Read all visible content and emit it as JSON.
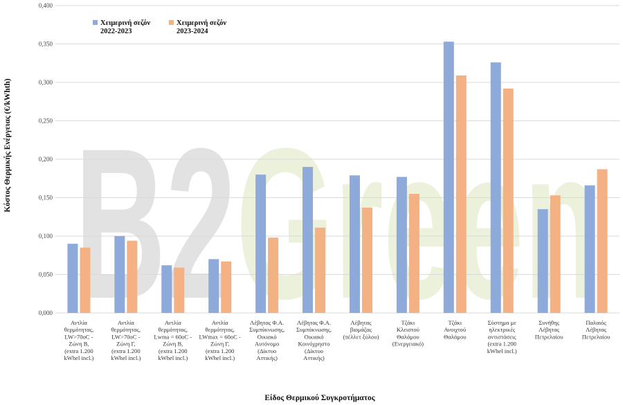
{
  "chart_data": {
    "type": "bar",
    "title": "",
    "xlabel": "Είδος Θερμικού Συγκροτήματος",
    "ylabel": "Κόστος Θερμικής Ενέργειας (€/kWhth)",
    "ylim": [
      0,
      0.4
    ],
    "yticks": [
      "0,000",
      "0,050",
      "0,100",
      "0,150",
      "0,200",
      "0,250",
      "0,300",
      "0,350",
      "0,400"
    ],
    "grid": true,
    "legend_position": "top-left",
    "categories": [
      [
        "Αντλία",
        "θερμότητας,",
        "LW>70oC -",
        "Ζώνη Β,",
        "(extra 1.200",
        "kWhel incl.)"
      ],
      [
        "Αντλία",
        "θερμότητας,",
        "LW>70oC -",
        "Ζώνη Γ,",
        "(extra 1.200",
        "kWhel incl.)"
      ],
      [
        "Αντλία",
        "θερμότητας,",
        "Lwma = 60oC -",
        "Ζώνη Β,",
        "(extra 1.200",
        "kWhel incl.)"
      ],
      [
        "Αντλία",
        "θερμότητας,",
        "LWmax = 60oC -",
        "Ζώνη Γ,",
        "(extra 1.200",
        "kWhel incl.)"
      ],
      [
        "Λέβητας Φ.Α.",
        "Συμπύκνωσης,",
        "Οικιακό",
        "Αυτόνομο",
        "(Δίκτυο",
        "Αττικής)"
      ],
      [
        "Λέβητας Φ.Α.",
        "Συμπύκνωσης,",
        "Οικιακό",
        "Κοινόχρηστο",
        "(Δίκτυο",
        "Αττικής)"
      ],
      [
        "Λέβητας",
        "βιομάζας",
        "(πέλλετ ξύλου)"
      ],
      [
        "Τζάκι",
        "Κλειστού",
        "Θαλάμου",
        "(Ενεργειακό)"
      ],
      [
        "Τζάκι",
        "Ανοιχτού",
        "Θαλάμου"
      ],
      [
        "Σύστημα με",
        "ηλεκτρικές",
        "αντιστάσεις",
        "(extra 1.200",
        "kWhel incl.)"
      ],
      [
        "Συνήθης",
        "Λέβητας",
        "Πετρελαίου"
      ],
      [
        "Παλαιός",
        "Λέβητας",
        "Πετρελαίου"
      ]
    ],
    "series": [
      {
        "name": [
          "Χειμερινή σεζόν",
          "2022-2023"
        ],
        "color": "#8eaadb",
        "values": [
          0.09,
          0.1,
          0.062,
          0.07,
          0.18,
          0.19,
          0.179,
          0.177,
          0.353,
          0.326,
          0.135,
          0.166
        ]
      },
      {
        "name": [
          "Χειμερινή σεζόν",
          "2023-2024"
        ],
        "color": "#f4b183",
        "values": [
          0.085,
          0.094,
          0.059,
          0.067,
          0.098,
          0.111,
          0.137,
          0.155,
          0.309,
          0.292,
          0.153,
          0.187
        ]
      }
    ],
    "watermark": {
      "text": "B2Green",
      "colors": [
        "#d8d8d8",
        "#e9efd6"
      ]
    }
  }
}
